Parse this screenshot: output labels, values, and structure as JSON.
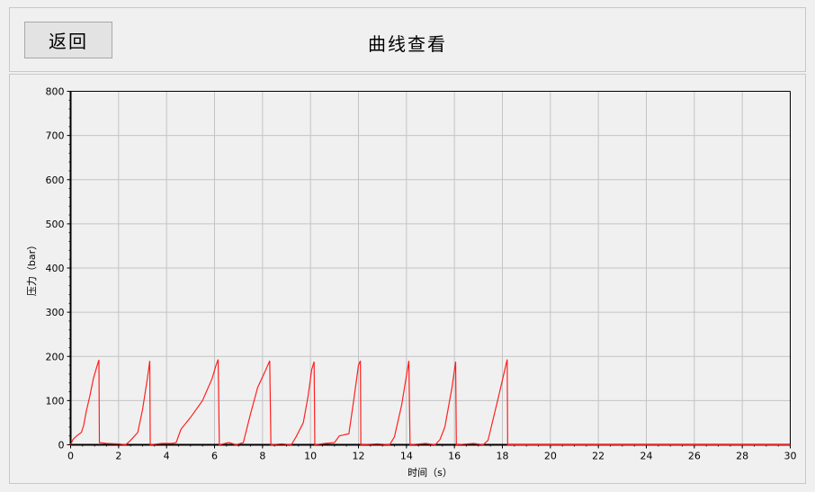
{
  "header": {
    "back_label": "返回",
    "title": "曲线查看"
  },
  "chart_data": {
    "type": "line",
    "title": "",
    "xlabel": "时间（s）",
    "ylabel": "压力（bar）",
    "xlim": [
      0,
      30
    ],
    "ylim": [
      0,
      800
    ],
    "x_ticks": [
      "0",
      "2",
      "4",
      "6",
      "8",
      "10",
      "12",
      "14",
      "16",
      "18",
      "20",
      "22",
      "24",
      "26",
      "28",
      "30"
    ],
    "y_ticks": [
      "0",
      "100",
      "200",
      "300",
      "400",
      "500",
      "600",
      "700",
      "800"
    ],
    "grid": true,
    "line_color": "#ff2020",
    "series": [
      {
        "points": [
          [
            0,
            0
          ],
          [
            0.1,
            12
          ],
          [
            0.25,
            20
          ],
          [
            0.45,
            28
          ],
          [
            0.55,
            45
          ],
          [
            0.65,
            75
          ],
          [
            0.8,
            110
          ],
          [
            0.95,
            150
          ],
          [
            1.1,
            178
          ],
          [
            1.18,
            192
          ],
          [
            1.2,
            5
          ],
          [
            1.5,
            3
          ],
          [
            2.0,
            2
          ],
          [
            2.3,
            0
          ],
          [
            2.5,
            10
          ],
          [
            2.8,
            28
          ],
          [
            3.0,
            80
          ],
          [
            3.2,
            150
          ],
          [
            3.3,
            190
          ],
          [
            3.32,
            0
          ],
          [
            3.8,
            3
          ],
          [
            4.2,
            3
          ],
          [
            4.4,
            5
          ],
          [
            4.6,
            35
          ],
          [
            5.0,
            62
          ],
          [
            5.5,
            100
          ],
          [
            5.9,
            150
          ],
          [
            6.05,
            178
          ],
          [
            6.15,
            193
          ],
          [
            6.2,
            0
          ],
          [
            6.6,
            5
          ],
          [
            6.9,
            0
          ],
          [
            7.2,
            5
          ],
          [
            7.5,
            70
          ],
          [
            7.8,
            130
          ],
          [
            8.1,
            165
          ],
          [
            8.3,
            190
          ],
          [
            8.35,
            0
          ],
          [
            8.8,
            2
          ],
          [
            9.2,
            0
          ],
          [
            9.4,
            18
          ],
          [
            9.7,
            50
          ],
          [
            9.9,
            110
          ],
          [
            10.05,
            170
          ],
          [
            10.15,
            188
          ],
          [
            10.18,
            0
          ],
          [
            10.6,
            3
          ],
          [
            11.0,
            5
          ],
          [
            11.2,
            20
          ],
          [
            11.6,
            25
          ],
          [
            11.8,
            100
          ],
          [
            12.0,
            180
          ],
          [
            12.08,
            190
          ],
          [
            12.1,
            0
          ],
          [
            12.8,
            2
          ],
          [
            13.3,
            0
          ],
          [
            13.5,
            18
          ],
          [
            13.8,
            90
          ],
          [
            14.1,
            190
          ],
          [
            14.15,
            0
          ],
          [
            14.8,
            3
          ],
          [
            15.2,
            0
          ],
          [
            15.4,
            12
          ],
          [
            15.6,
            40
          ],
          [
            15.9,
            130
          ],
          [
            16.05,
            188
          ],
          [
            16.08,
            0
          ],
          [
            16.8,
            3
          ],
          [
            17.2,
            0
          ],
          [
            17.4,
            10
          ],
          [
            17.8,
            100
          ],
          [
            18.2,
            193
          ],
          [
            18.22,
            0
          ],
          [
            20,
            0
          ],
          [
            25,
            0
          ],
          [
            30,
            0
          ]
        ]
      }
    ]
  }
}
